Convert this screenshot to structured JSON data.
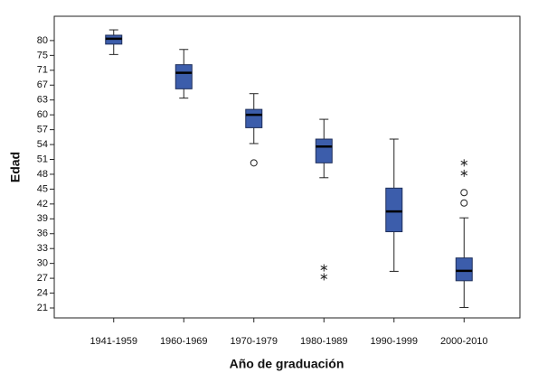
{
  "chart_data": {
    "type": "box",
    "x_label": "Año de graduación",
    "y_label": "Edad",
    "categories": [
      "1941-1959",
      "1960-1969",
      "1970-1979",
      "1980-1989",
      "1990-1999",
      "2000-2010"
    ],
    "color": "#3c5dab",
    "ylim": [
      19,
      88
    ],
    "yticks": [
      21,
      24,
      27,
      30,
      33,
      36,
      39,
      42,
      45,
      48,
      51,
      54,
      57,
      60,
      63,
      67,
      71,
      75,
      80
    ],
    "boxes": [
      {
        "whislo": 75.3,
        "q1": 78.8,
        "med": 80.6,
        "q3": 81.8,
        "whishi": 83.6,
        "outliers": [],
        "extremes": []
      },
      {
        "whislo": 63.5,
        "q1": 66,
        "med": 70.3,
        "q3": 72.5,
        "whishi": 77,
        "outliers": [],
        "extremes": []
      },
      {
        "whislo": 54.2,
        "q1": 57.4,
        "med": 60,
        "q3": 61.1,
        "whishi": 64.7,
        "outliers": [
          50.3
        ],
        "extremes": []
      },
      {
        "whislo": 47.3,
        "q1": 50.3,
        "med": 53.6,
        "q3": 55.1,
        "whishi": 59.1,
        "outliers": [],
        "extremes": [
          29.1,
          27.3
        ]
      },
      {
        "whislo": 28.4,
        "q1": 36.4,
        "med": 40.5,
        "q3": 45.2,
        "whishi": 55.1,
        "outliers": [],
        "extremes": []
      },
      {
        "whislo": 21.1,
        "q1": 26.5,
        "med": 28.5,
        "q3": 31.1,
        "whishi": 39.2,
        "outliers": [
          44.3,
          42.2
        ],
        "extremes": [
          50.3,
          48.2
        ]
      }
    ]
  }
}
